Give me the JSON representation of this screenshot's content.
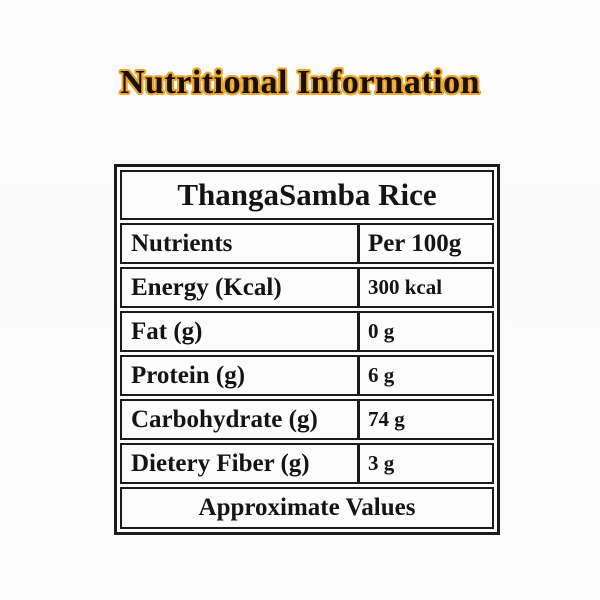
{
  "page": {
    "title": "Nutritional Information"
  },
  "table": {
    "product_name": "ThangaSamba Rice",
    "columns": {
      "nutrients": "Nutrients",
      "per_amount": "Per 100g"
    },
    "rows": [
      {
        "label": "Energy (Kcal)",
        "value": "300 kcal"
      },
      {
        "label": "Fat (g)",
        "value": "0 g"
      },
      {
        "label": "Protein (g)",
        "value": "6 g"
      },
      {
        "label": "Carbohydrate (g)",
        "value": "74 g"
      },
      {
        "label": "Dietery Fiber (g)",
        "value": "3 g"
      }
    ],
    "footer": "Approximate Values"
  },
  "colors": {
    "title_text": "#190f02",
    "title_outline": "#eda62c",
    "table_border": "#1b1b1b",
    "table_text": "#141414",
    "background": "#fdfdfd"
  }
}
